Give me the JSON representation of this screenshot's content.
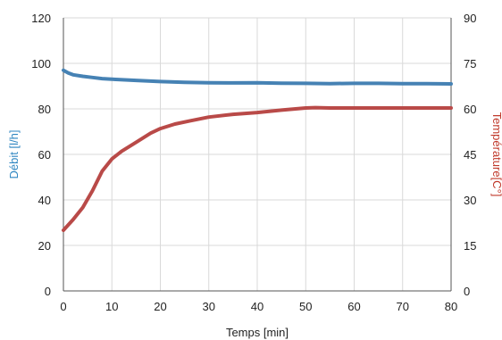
{
  "chart_data": {
    "type": "line",
    "xlabel": "Temps [min]",
    "ylabel_left": "Débit [l/h]",
    "ylabel_right": "Température[C°]",
    "xlim": [
      0,
      80
    ],
    "ylim_left": [
      0,
      120
    ],
    "ylim_right": [
      0,
      90
    ],
    "x_ticks": [
      0,
      10,
      20,
      30,
      40,
      50,
      60,
      70,
      80
    ],
    "y_ticks_left": [
      0,
      20,
      40,
      60,
      80,
      100,
      120
    ],
    "y_ticks_right": [
      0,
      15,
      30,
      45,
      60,
      75,
      90
    ],
    "grid": true,
    "colors": {
      "left_axis": "#2e86c1",
      "right_axis": "#c0392b",
      "series_flow": "#4682b4",
      "series_temp": "#b94a48",
      "grid": "#d9d9d9",
      "axis": "#555555"
    },
    "series": [
      {
        "axis": "left",
        "x": [
          0,
          1,
          2,
          4,
          6,
          8,
          10,
          15,
          20,
          25,
          30,
          35,
          40,
          45,
          50,
          55,
          60,
          65,
          70,
          75,
          80
        ],
        "y": [
          97,
          95.8,
          95,
          94.3,
          93.8,
          93.3,
          93,
          92.5,
          92,
          91.7,
          91.5,
          91.4,
          91.5,
          91.3,
          91.2,
          91.1,
          91.2,
          91.2,
          91.1,
          91.1,
          91
        ]
      },
      {
        "axis": "right",
        "x": [
          0,
          2,
          4,
          6,
          8,
          10,
          12,
          15,
          18,
          20,
          23,
          26,
          30,
          35,
          40,
          45,
          50,
          52,
          55,
          60,
          65,
          70,
          75,
          80
        ],
        "y": [
          20,
          23.5,
          27.5,
          33,
          39.5,
          43.5,
          46,
          49,
          52,
          53.5,
          55,
          56,
          57.3,
          58.2,
          58.8,
          59.6,
          60.3,
          60.4,
          60.3,
          60.3,
          60.3,
          60.3,
          60.3,
          60.3
        ]
      }
    ]
  }
}
